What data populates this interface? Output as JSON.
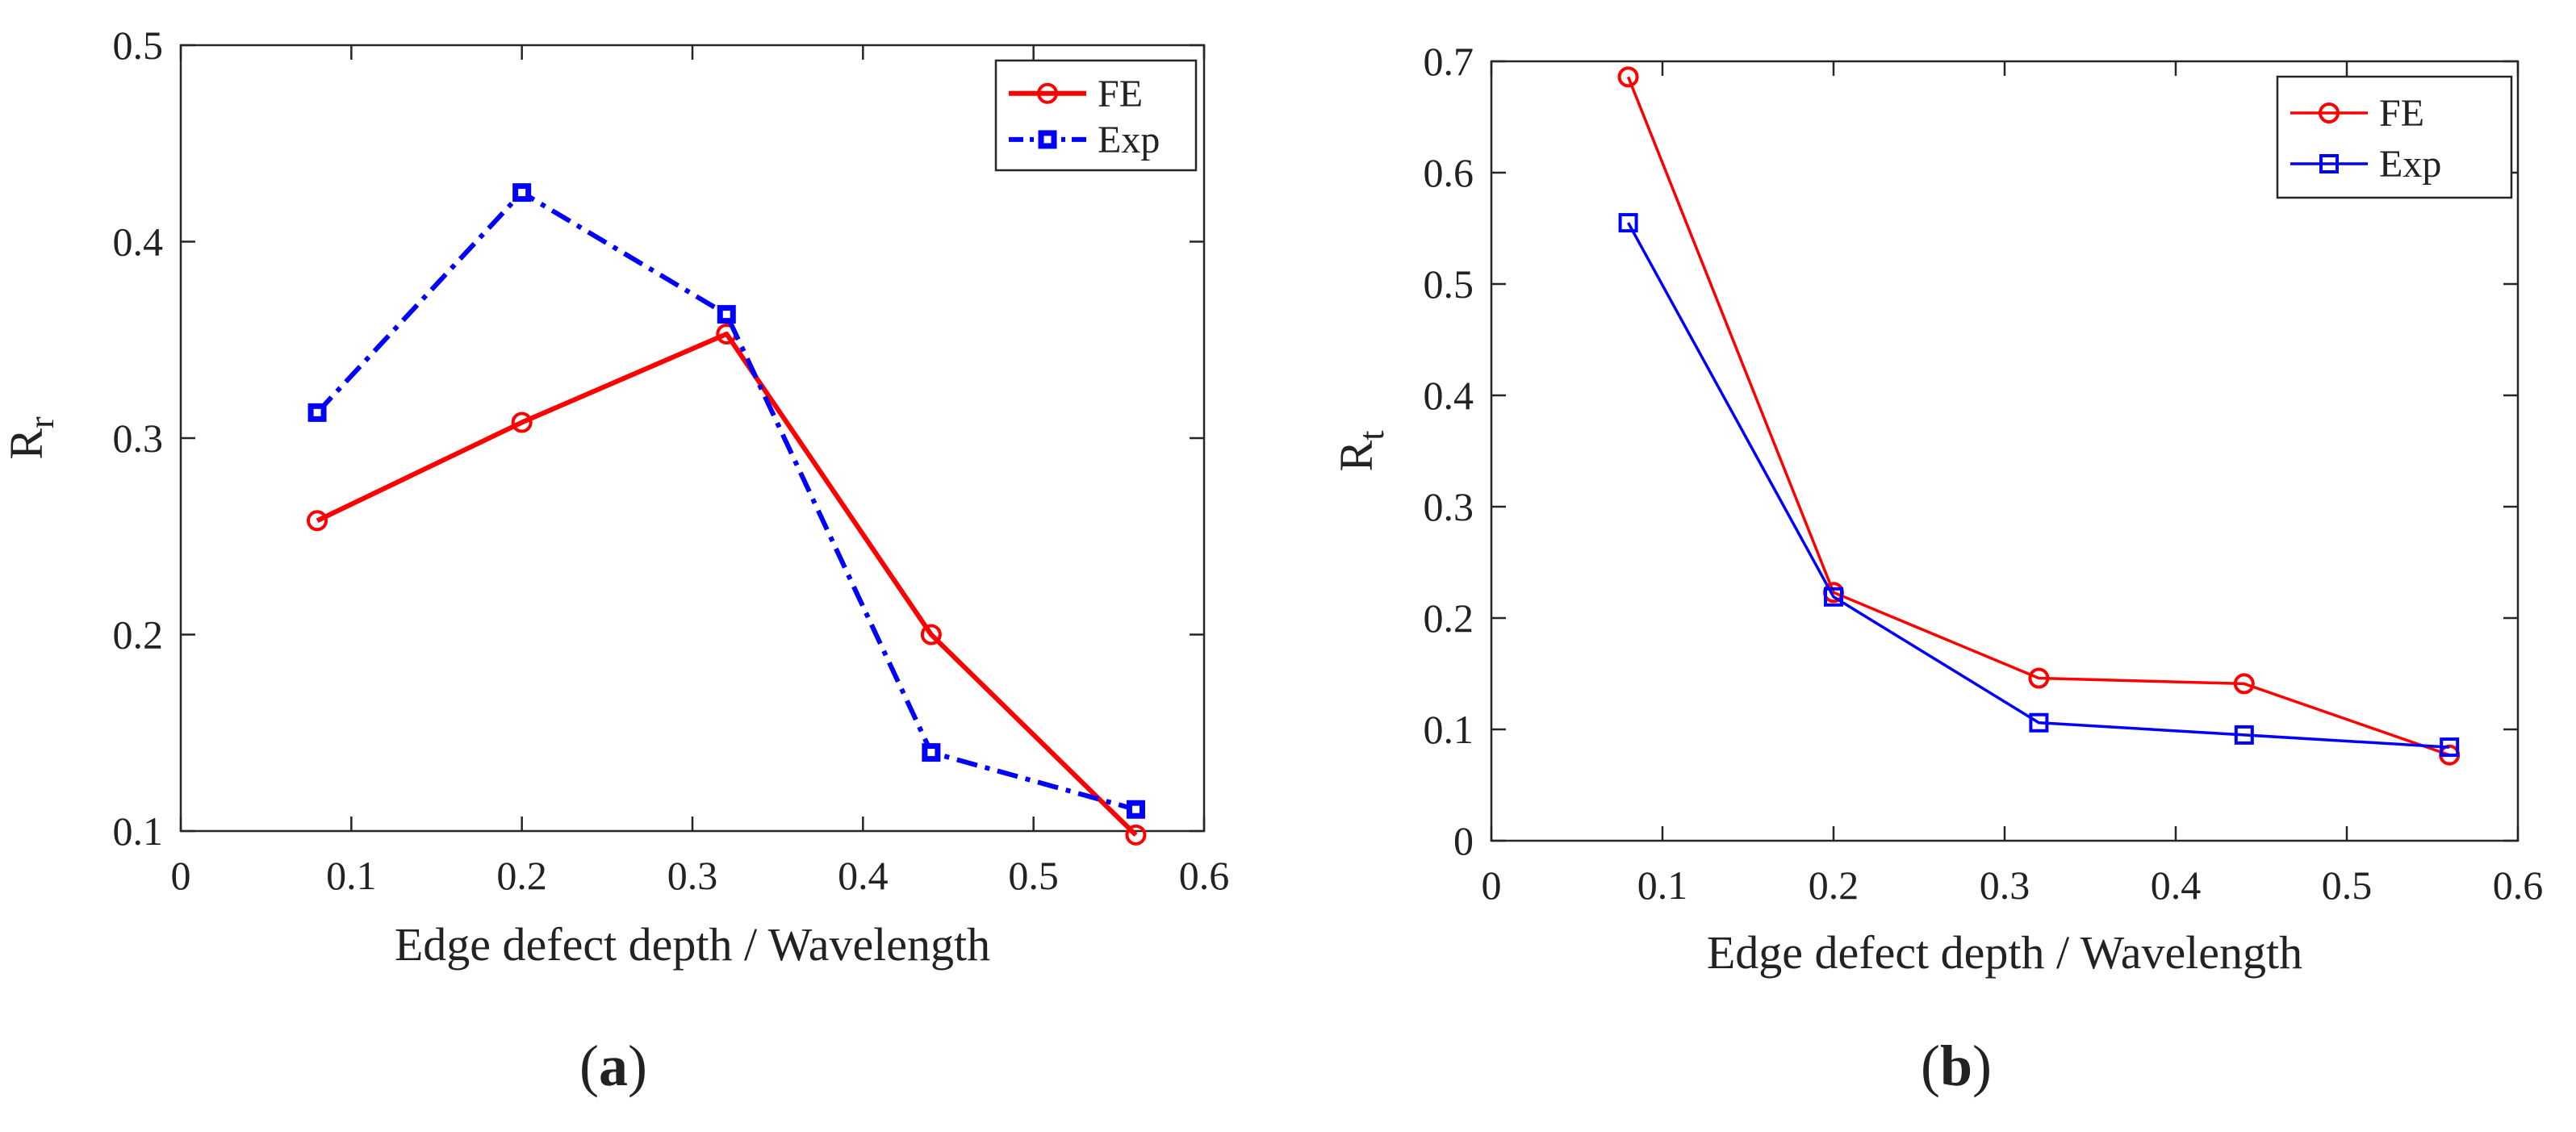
{
  "chart_data": [
    {
      "type": "line",
      "panel_label": "a",
      "xlabel": "Edge defect depth / Wavelength",
      "ylabel": {
        "base": "R",
        "subscript": "r"
      },
      "xlim": [
        0,
        0.6
      ],
      "ylim": [
        0.1,
        0.5
      ],
      "xticks": [
        "0",
        "0.1",
        "0.2",
        "0.3",
        "0.4",
        "0.5",
        "0.6"
      ],
      "yticks": [
        "0.1",
        "0.2",
        "0.3",
        "0.4",
        "0.5"
      ],
      "legend_position": "top-right",
      "x": [
        0.08,
        0.2,
        0.32,
        0.44,
        0.56
      ],
      "series": [
        {
          "name": "FE",
          "values": [
            0.258,
            0.308,
            0.353,
            0.2,
            0.098
          ],
          "color": "#ff0000",
          "line": "solid",
          "marker": "circle",
          "thick": true
        },
        {
          "name": "Exp",
          "values": [
            0.313,
            0.425,
            0.363,
            0.14,
            0.111
          ],
          "color": "#0000ff",
          "line": "dashdot",
          "marker": "square-filled",
          "thick": true
        }
      ]
    },
    {
      "type": "line",
      "panel_label": "b",
      "xlabel": "Edge defect depth / Wavelength",
      "ylabel": {
        "base": "R",
        "subscript": "t"
      },
      "xlim": [
        0,
        0.6
      ],
      "ylim": [
        0,
        0.7
      ],
      "xticks": [
        "0",
        "0.1",
        "0.2",
        "0.3",
        "0.4",
        "0.5",
        "0.6"
      ],
      "yticks": [
        "0",
        "0.1",
        "0.2",
        "0.3",
        "0.4",
        "0.5",
        "0.6",
        "0.7"
      ],
      "legend_position": "top-right",
      "x": [
        0.08,
        0.2,
        0.32,
        0.44,
        0.56
      ],
      "series": [
        {
          "name": "FE",
          "values": [
            0.686,
            0.223,
            0.146,
            0.141,
            0.077
          ],
          "color": "#ff0000",
          "line": "solid",
          "marker": "circle",
          "thick": false
        },
        {
          "name": "Exp",
          "values": [
            0.555,
            0.219,
            0.106,
            0.095,
            0.084
          ],
          "color": "#0000ff",
          "line": "solid",
          "marker": "square",
          "thick": false
        }
      ]
    }
  ]
}
